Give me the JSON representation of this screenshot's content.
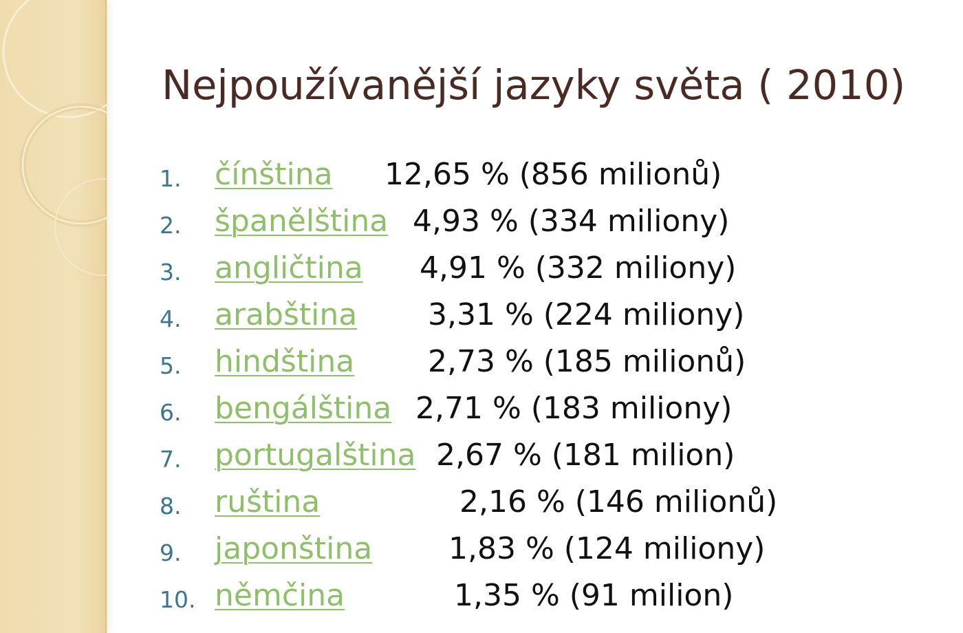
{
  "slide": {
    "title": "Nejpoužívanější jazyky světa ( 2010)",
    "accent_colors": {
      "band": "#efdcae",
      "title": "#4a2a22",
      "number": "#3c7590",
      "link": "#8fbf6a",
      "text": "#111111"
    },
    "items": [
      {
        "num": "1.",
        "lang": "čínština",
        "stat": "12,65 % (856 milionů)"
      },
      {
        "num": "2.",
        "lang": "španělština",
        "stat": "4,93 % (334 miliony)"
      },
      {
        "num": "3.",
        "lang": "angličtina",
        "stat": "4,91 % (332 miliony)"
      },
      {
        "num": "4.",
        "lang": "arabština",
        "stat": "3,31 % (224 miliony)"
      },
      {
        "num": "5.",
        "lang": "hindština",
        "stat": "2,73 % (185 milionů)"
      },
      {
        "num": "6.",
        "lang": "bengálština",
        "stat": "2,71 % (183 miliony)"
      },
      {
        "num": "7.",
        "lang": "portugalština",
        "stat": "2,67 % (181 milion)"
      },
      {
        "num": "8.",
        "lang": "ruština",
        "stat": "2,16 % (146 milionů)"
      },
      {
        "num": "9.",
        "lang": "japonština",
        "stat": "1,83 % (124 miliony)"
      },
      {
        "num": "10.",
        "lang": "němčina",
        "stat": "1,35 % (91 milion)"
      }
    ]
  }
}
